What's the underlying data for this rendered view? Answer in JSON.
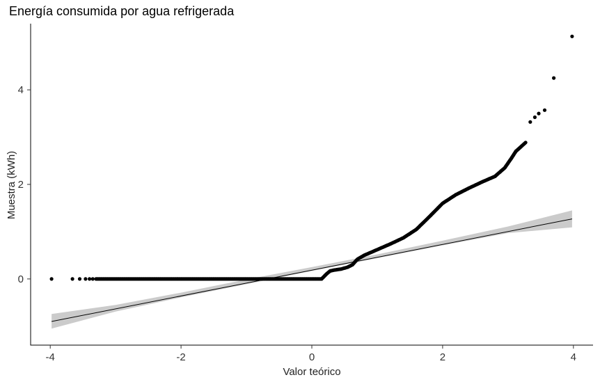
{
  "chart_data": {
    "type": "scatter",
    "title": "Energía consumida por agua refrigerada",
    "xlabel": "Valor teórico",
    "ylabel": "Muestra (kWh)",
    "xlim": [
      -4.3,
      4.3
    ],
    "ylim": [
      -1.4,
      5.4
    ],
    "x_ticks": [
      -4,
      -2,
      0,
      2,
      4
    ],
    "y_ticks": [
      0,
      2,
      4
    ],
    "x_tick_labels": [
      "-4",
      "-2",
      "0",
      "2",
      "4"
    ],
    "y_tick_labels": [
      "0",
      "2",
      "4"
    ],
    "grid": false,
    "legend": "none",
    "colors": {
      "points": "#000000",
      "line": "#000000",
      "band": "#c8c8c8"
    },
    "reference_line": {
      "x": [
        -3.98,
        3.98
      ],
      "y": [
        -0.9,
        1.27
      ]
    },
    "confidence_band": {
      "x": [
        -3.98,
        -3.0,
        -2.0,
        -1.0,
        0.0,
        1.0,
        2.0,
        3.0,
        3.98
      ],
      "lower": [
        -1.05,
        -0.69,
        -0.39,
        -0.11,
        0.17,
        0.44,
        0.71,
        0.97,
        1.09
      ],
      "upper": [
        -0.74,
        -0.55,
        -0.29,
        -0.01,
        0.25,
        0.52,
        0.81,
        1.11,
        1.45
      ]
    },
    "points_sparse": {
      "x": [
        -3.98,
        -3.66,
        -3.55,
        -3.46,
        -3.4,
        -3.35,
        3.34,
        3.41,
        3.47,
        3.56,
        3.7,
        3.98
      ],
      "y": [
        0.0,
        0.0,
        0.0,
        0.0,
        0.0,
        0.0,
        3.32,
        3.42,
        3.5,
        3.57,
        4.25,
        5.13
      ]
    },
    "points_dense_curve": {
      "x": [
        -3.3,
        -1.0,
        0.0,
        0.15,
        0.22,
        0.28,
        0.35,
        0.45,
        0.55,
        0.62,
        0.7,
        0.8,
        1.0,
        1.2,
        1.4,
        1.6,
        1.8,
        2.0,
        2.2,
        2.4,
        2.6,
        2.8,
        2.95,
        3.05,
        3.12,
        3.2,
        3.28
      ],
      "y": [
        0.0,
        0.0,
        0.0,
        0.0,
        0.1,
        0.17,
        0.19,
        0.21,
        0.25,
        0.3,
        0.42,
        0.5,
        0.62,
        0.74,
        0.87,
        1.05,
        1.32,
        1.6,
        1.78,
        1.92,
        2.05,
        2.17,
        2.35,
        2.55,
        2.7,
        2.8,
        2.9
      ]
    }
  }
}
